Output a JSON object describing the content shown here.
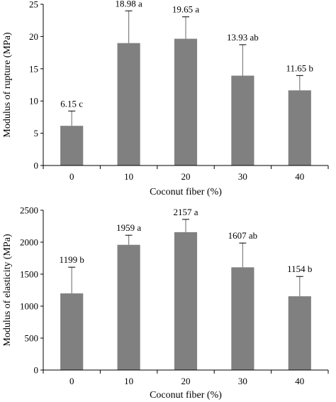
{
  "chart_data": [
    {
      "type": "bar",
      "xlabel": "Coconut fiber (%)",
      "ylabel": "Modulus of rupture (MPa)",
      "ylim": [
        0,
        25
      ],
      "yticks": [
        0,
        5,
        10,
        15,
        20,
        25
      ],
      "categories": [
        "0",
        "10",
        "20",
        "30",
        "40"
      ],
      "values": [
        6.15,
        18.98,
        19.65,
        13.93,
        11.65
      ],
      "error": [
        2.3,
        5.0,
        3.4,
        4.8,
        2.3
      ],
      "labels": [
        "6.15 c",
        "18.98 a",
        "19.65 a",
        "13.93 ab",
        "11.65 b"
      ],
      "grid": false
    },
    {
      "type": "bar",
      "xlabel": "Coconut fiber (%)",
      "ylabel": "Modulus of elasticity (MPa)",
      "ylim": [
        0,
        2500
      ],
      "yticks": [
        0,
        500,
        1000,
        1500,
        2000,
        2500
      ],
      "categories": [
        "0",
        "10",
        "20",
        "30",
        "40"
      ],
      "values": [
        1199,
        1959,
        2157,
        1607,
        1154
      ],
      "error": [
        410,
        150,
        200,
        380,
        310
      ],
      "labels": [
        "1199 b",
        "1959 a",
        "2157 a",
        "1607 ab",
        "1154 b"
      ],
      "grid": false
    }
  ]
}
